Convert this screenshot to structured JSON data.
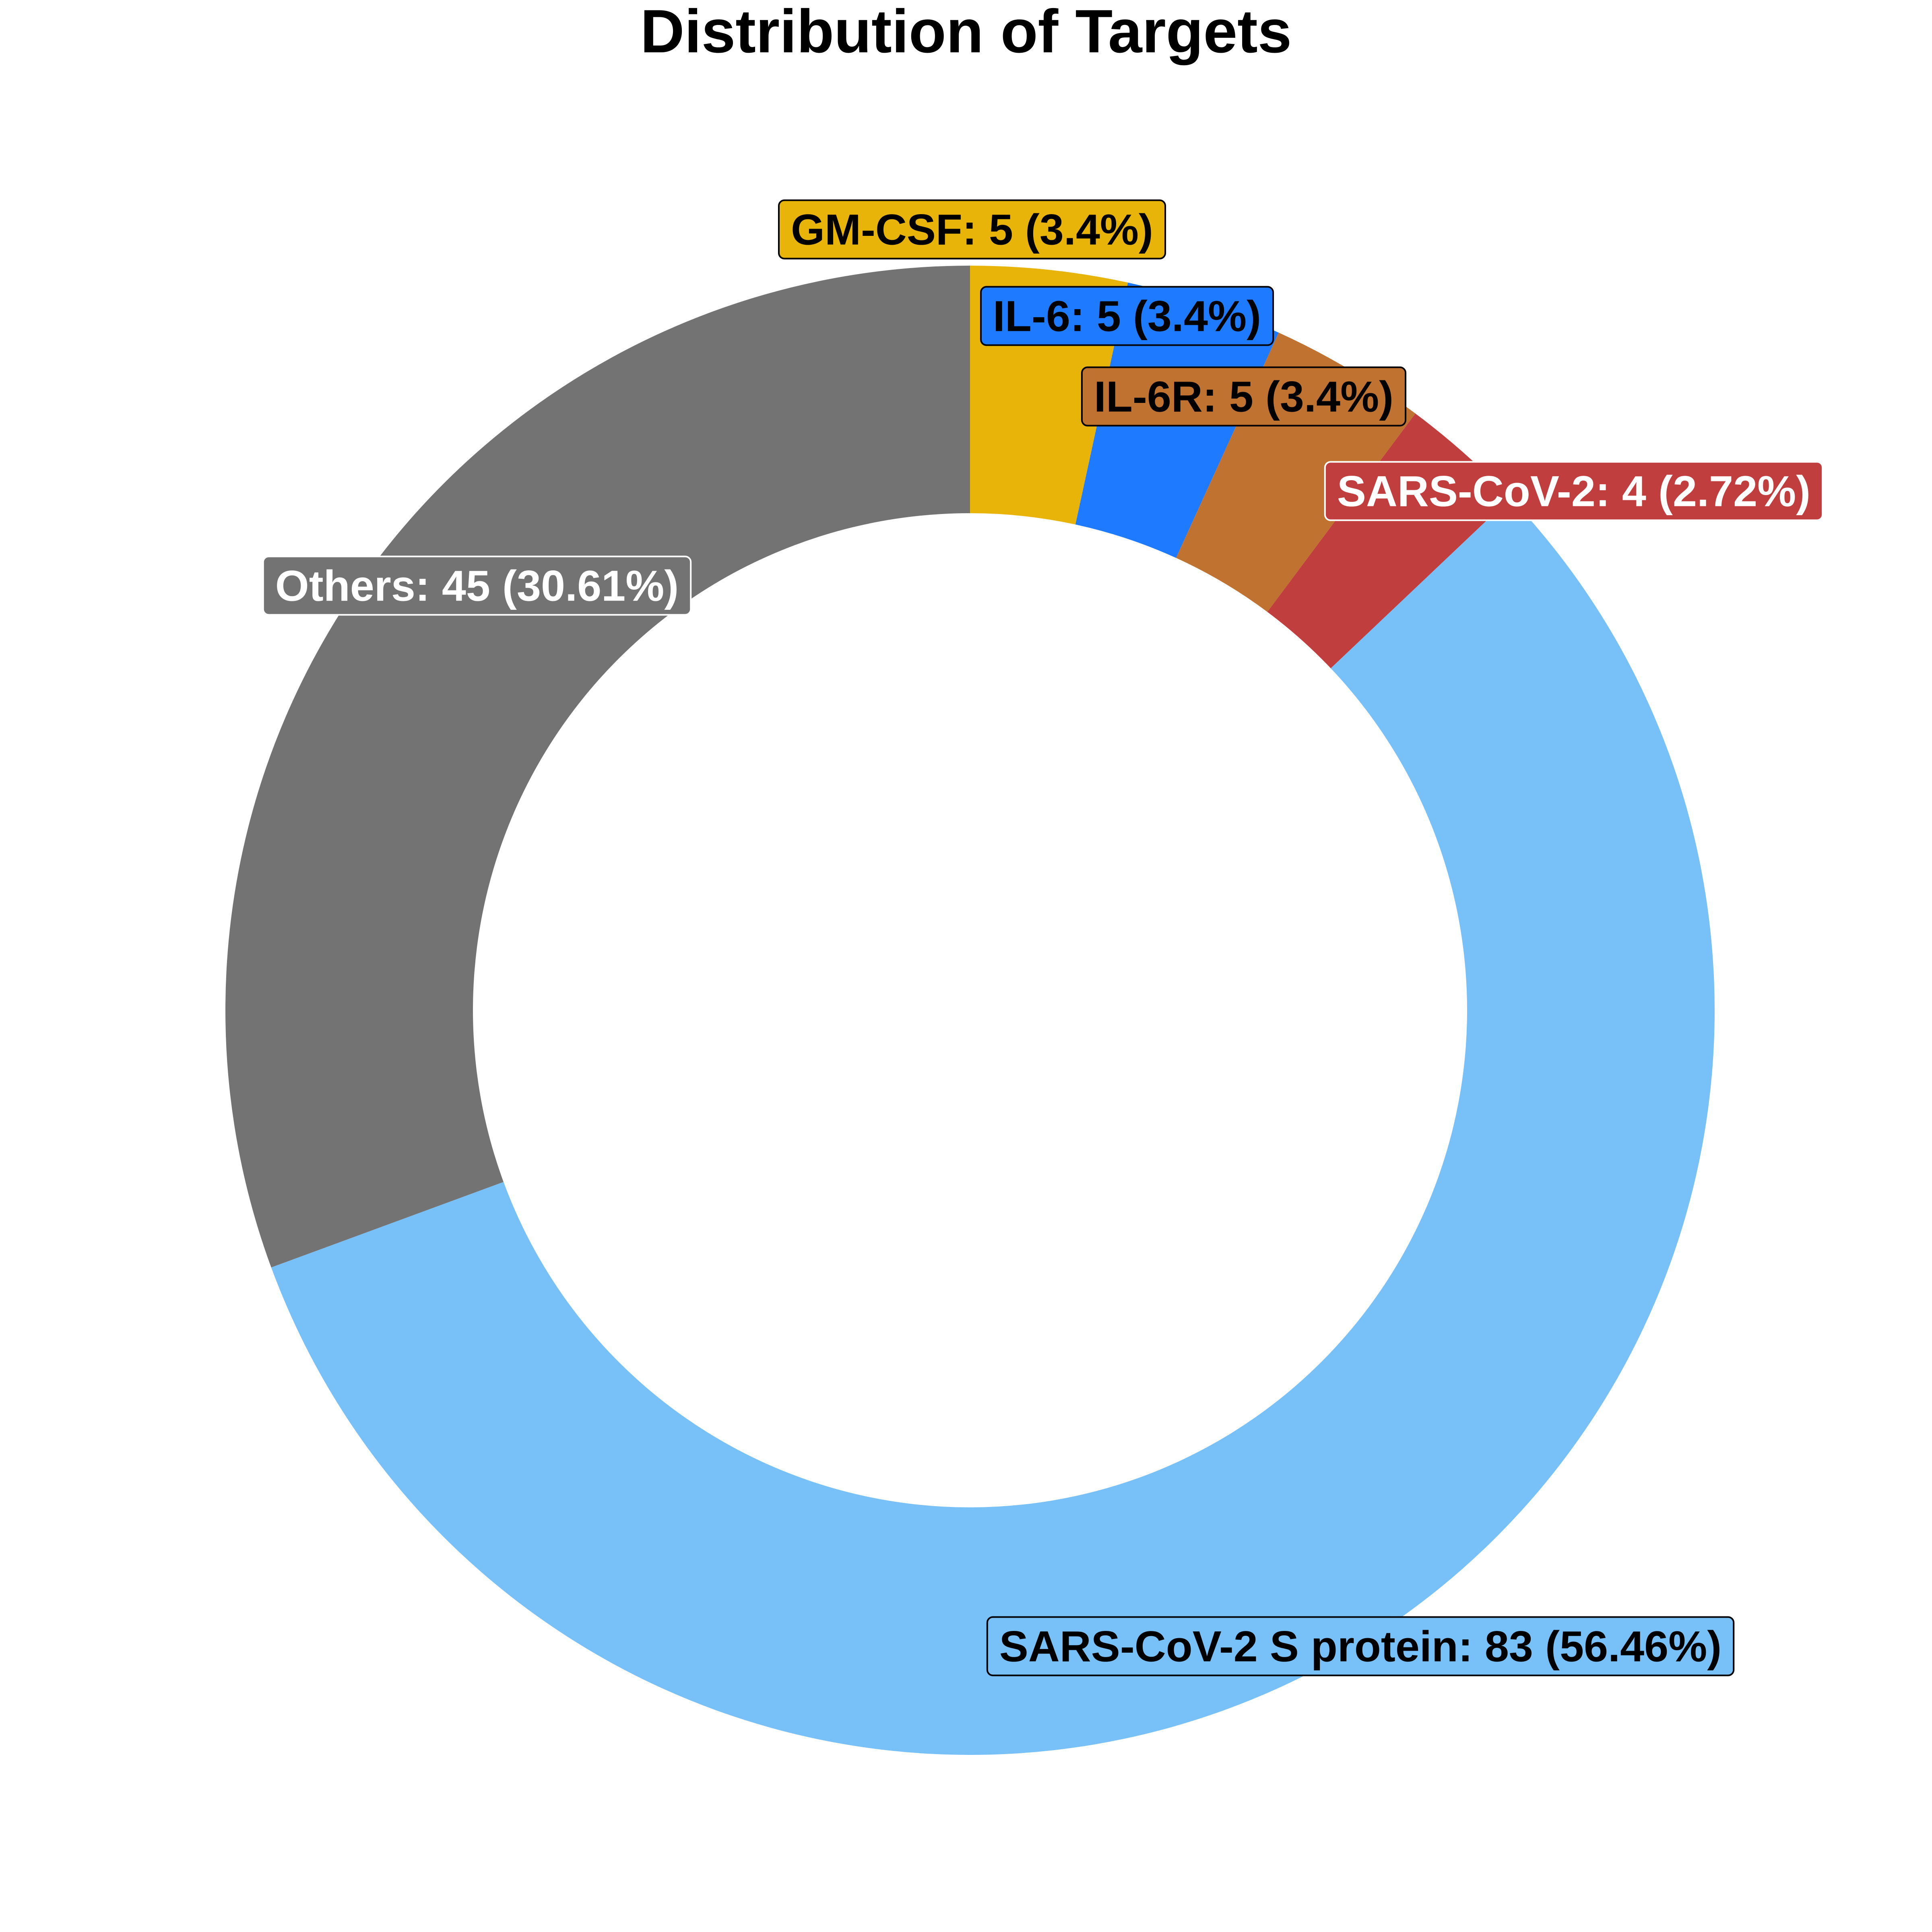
{
  "chart_data": {
    "type": "pie",
    "style": "donut",
    "title": "Distribution of Targets",
    "start_angle": "top",
    "direction": "clockwise",
    "legend": "none",
    "slices": [
      {
        "name": "GM-CSF",
        "value": 5,
        "percent": 3.4,
        "label": "GM-CSF: 5 (3.4%)",
        "color": "#E8B40A",
        "label_color": "#000000"
      },
      {
        "name": "IL-6",
        "value": 5,
        "percent": 3.4,
        "label": "IL-6: 5 (3.4%)",
        "color": "#1E7BFF",
        "label_color": "#000000"
      },
      {
        "name": "IL-6R",
        "value": 5,
        "percent": 3.4,
        "label": "IL-6R: 5 (3.4%)",
        "color": "#C07230",
        "label_color": "#000000"
      },
      {
        "name": "SARS-CoV-2",
        "value": 4,
        "percent": 2.72,
        "label": "SARS-CoV-2: 4 (2.72%)",
        "color": "#C13E3E",
        "label_color": "#FFFFFF"
      },
      {
        "name": "SARS-CoV-2 S protein",
        "value": 83,
        "percent": 56.46,
        "label": "SARS-CoV-2 S protein: 83 (56.46%)",
        "color": "#77C0F8",
        "label_color": "#000000"
      },
      {
        "name": "Others",
        "value": 45,
        "percent": 30.61,
        "label": "Others: 45 (30.61%)",
        "color": "#737373",
        "label_color": "#FFFFFF"
      }
    ]
  }
}
